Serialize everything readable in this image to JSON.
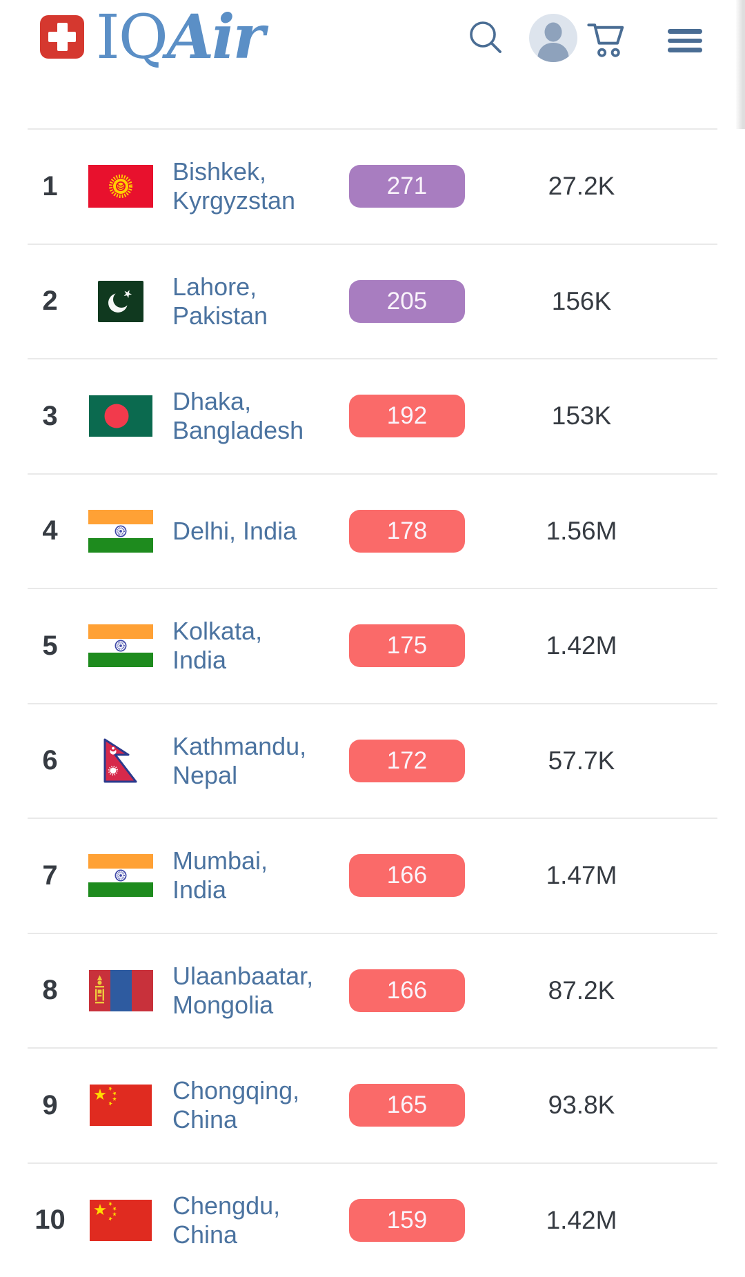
{
  "header": {
    "logo": {
      "prefix": "IQ",
      "suffix": "Air"
    },
    "icons": {
      "search": "search-icon",
      "account": "user-account-icon",
      "cart": "shopping-cart-icon",
      "menu": "hamburger-menu-icon"
    }
  },
  "colors": {
    "logo_red": "#d5382f",
    "logo_blue": "#5b8fc6",
    "icon_blue": "#4a6d94",
    "city_blue": "#4b73a0",
    "text_dark": "#363b42",
    "divider": "#e9e9e9",
    "aqi_purple": "#a87dc0",
    "aqi_red": "#fa6a69",
    "badge_text": "#faf4fb"
  },
  "ranking": {
    "rows": [
      {
        "rank": "1",
        "flag": "flag-kyrgyzstan",
        "city": "Bishkek,\nKyrgyzstan",
        "aqi": "271",
        "aqi_level": "purple",
        "followers": "27.2K"
      },
      {
        "rank": "2",
        "flag": "flag-pakistan",
        "city": "Lahore,\nPakistan",
        "aqi": "205",
        "aqi_level": "purple",
        "followers": "156K"
      },
      {
        "rank": "3",
        "flag": "flag-bangladesh",
        "city": "Dhaka,\nBangladesh",
        "aqi": "192",
        "aqi_level": "red",
        "followers": "153K"
      },
      {
        "rank": "4",
        "flag": "flag-india",
        "city": "Delhi, India",
        "aqi": "178",
        "aqi_level": "red",
        "followers": "1.56M"
      },
      {
        "rank": "5",
        "flag": "flag-india",
        "city": "Kolkata,\nIndia",
        "aqi": "175",
        "aqi_level": "red",
        "followers": "1.42M"
      },
      {
        "rank": "6",
        "flag": "flag-nepal",
        "city": "Kathmandu,\nNepal",
        "aqi": "172",
        "aqi_level": "red",
        "followers": "57.7K"
      },
      {
        "rank": "7",
        "flag": "flag-india",
        "city": "Mumbai,\nIndia",
        "aqi": "166",
        "aqi_level": "red",
        "followers": "1.47M"
      },
      {
        "rank": "8",
        "flag": "flag-mongolia",
        "city": "Ulaanbaatar,\nMongolia",
        "aqi": "166",
        "aqi_level": "red",
        "followers": "87.2K"
      },
      {
        "rank": "9",
        "flag": "flag-china",
        "city": "Chongqing,\nChina",
        "aqi": "165",
        "aqi_level": "red",
        "followers": "93.8K"
      },
      {
        "rank": "10",
        "flag": "flag-china",
        "city": "Chengdu,\nChina",
        "aqi": "159",
        "aqi_level": "red",
        "followers": "1.42M"
      }
    ]
  }
}
